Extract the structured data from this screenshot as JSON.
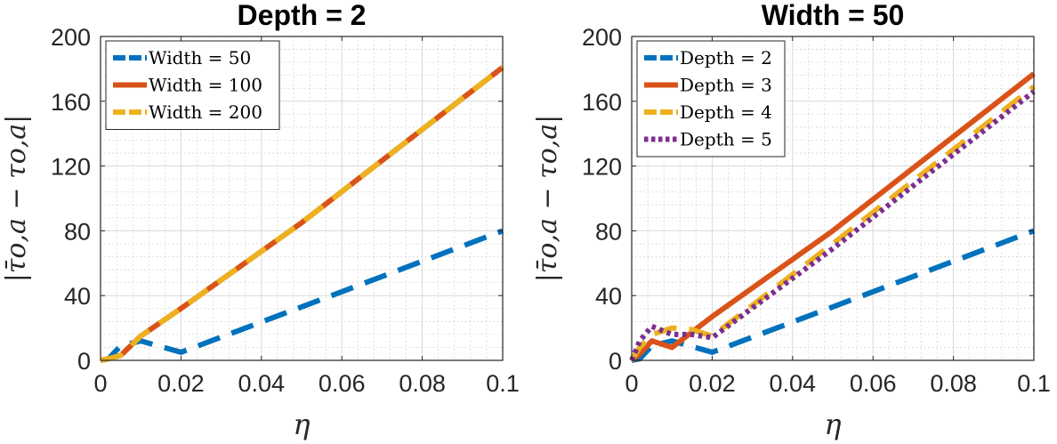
{
  "chart_data": [
    {
      "type": "line",
      "title": "Depth = 2",
      "xlabel": "η",
      "ylabel": "|τ̄o,a − τo,a|",
      "xlim": [
        0,
        0.1
      ],
      "ylim": [
        0,
        200
      ],
      "xticks": [
        "0",
        "0.02",
        "0.04",
        "0.06",
        "0.08",
        "0.1"
      ],
      "yticks": [
        "0",
        "40",
        "80",
        "120",
        "160",
        "200"
      ],
      "grid": true,
      "legend": "top-left",
      "series": [
        {
          "name": "Width = 50",
          "color": "#0072BD",
          "style": "dashed",
          "x": [
            0,
            0.002,
            0.005,
            0.01,
            0.02,
            0.05,
            0.1
          ],
          "y": [
            0,
            1,
            9,
            12,
            5,
            33,
            80
          ]
        },
        {
          "name": "Width = 100",
          "color": "#D95319",
          "style": "solid",
          "x": [
            0,
            0.002,
            0.005,
            0.01,
            0.02,
            0.05,
            0.1
          ],
          "y": [
            0,
            1,
            3,
            15,
            32,
            85,
            181
          ]
        },
        {
          "name": "Width = 200",
          "color": "#EDB120",
          "style": "dashed",
          "x": [
            0,
            0.002,
            0.005,
            0.01,
            0.02,
            0.05,
            0.1
          ],
          "y": [
            0,
            1,
            3,
            15,
            32,
            85,
            181
          ]
        }
      ]
    },
    {
      "type": "line",
      "title": "Width = 50",
      "xlabel": "η",
      "ylabel": "|τ̄o,a − τo,a|",
      "xlim": [
        0,
        0.1
      ],
      "ylim": [
        0,
        200
      ],
      "xticks": [
        "0",
        "0.02",
        "0.04",
        "0.06",
        "0.08",
        "0.1"
      ],
      "yticks": [
        "0",
        "40",
        "80",
        "120",
        "160",
        "200"
      ],
      "grid": true,
      "legend": "top-left",
      "series": [
        {
          "name": "Depth = 2",
          "color": "#0072BD",
          "style": "dashed",
          "x": [
            0,
            0.002,
            0.005,
            0.01,
            0.02,
            0.05,
            0.1
          ],
          "y": [
            0,
            1,
            9,
            12,
            5,
            33,
            80
          ]
        },
        {
          "name": "Depth = 3",
          "color": "#D95319",
          "style": "solid",
          "x": [
            0,
            0.002,
            0.005,
            0.01,
            0.02,
            0.05,
            0.1
          ],
          "y": [
            0,
            4,
            12,
            8,
            27,
            80,
            177
          ]
        },
        {
          "name": "Depth = 4",
          "color": "#EDB120",
          "style": "dashed",
          "x": [
            0,
            0.002,
            0.005,
            0.01,
            0.015,
            0.02,
            0.05,
            0.1
          ],
          "y": [
            0,
            8,
            16,
            20,
            19,
            15,
            72,
            169
          ]
        },
        {
          "name": "Depth = 5",
          "color": "#7E2F8E",
          "style": "dotted",
          "x": [
            0,
            0.002,
            0.005,
            0.01,
            0.015,
            0.02,
            0.05,
            0.1
          ],
          "y": [
            0,
            12,
            21,
            16,
            16,
            14,
            69,
            166
          ]
        }
      ]
    }
  ]
}
